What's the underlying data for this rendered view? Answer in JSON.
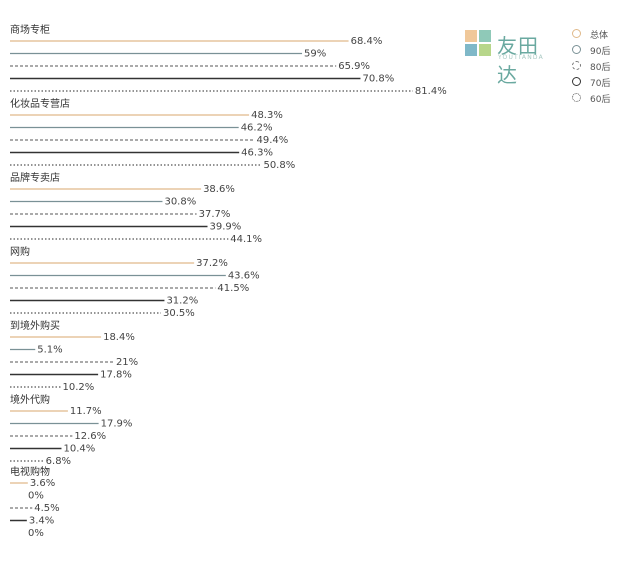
{
  "brand": {
    "name": "友田达",
    "sub": "YOUTIANDA"
  },
  "chart_data": {
    "type": "bar",
    "orientation": "horizontal",
    "grid": false,
    "legend_position": "top-right",
    "categories": [
      "商场专柜",
      "化妆品专营店",
      "品牌专卖店",
      "网购",
      "到境外购买",
      "境外代购",
      "电视购物"
    ],
    "series": [
      {
        "name": "总体",
        "color": "#e0b98a",
        "dash": "solid",
        "values": [
          68.4,
          48.3,
          38.6,
          37.2,
          18.4,
          11.7,
          3.6
        ]
      },
      {
        "name": "90后",
        "color": "#7a9196",
        "dash": "solid",
        "values": [
          59,
          46.2,
          30.8,
          43.6,
          5.1,
          17.9,
          0
        ]
      },
      {
        "name": "80后",
        "color": "#777777",
        "dash": "dashed",
        "values": [
          65.9,
          49.4,
          37.7,
          41.5,
          21,
          12.6,
          4.5
        ]
      },
      {
        "name": "70后",
        "color": "#333333",
        "dash": "solid",
        "values": [
          70.8,
          46.3,
          39.9,
          31.2,
          17.8,
          10.4,
          3.4
        ]
      },
      {
        "name": "60后",
        "color": "#555555",
        "dash": "dotted",
        "values": [
          81.4,
          50.8,
          44.1,
          30.5,
          10.2,
          6.8,
          0
        ]
      }
    ],
    "value_labels": [
      [
        "68.4%",
        "59%",
        "65.9%",
        "70.8%",
        "81.4%"
      ],
      [
        "48.3%",
        "46.2%",
        "49.4%",
        "46.3%",
        "50.8%"
      ],
      [
        "38.6%",
        "30.8%",
        "37.7%",
        "39.9%",
        "44.1%"
      ],
      [
        "37.2%",
        "43.6%",
        "41.5%",
        "31.2%",
        "30.5%"
      ],
      [
        "18.4%",
        "5.1%",
        "21%",
        "17.8%",
        "10.2%"
      ],
      [
        "11.7%",
        "17.9%",
        "12.6%",
        "10.4%",
        "6.8%"
      ],
      [
        "3.6%",
        "0%",
        "4.5%",
        "3.4%",
        "0%"
      ]
    ],
    "xlim": [
      0,
      100
    ],
    "title": "",
    "xlabel": "",
    "ylabel": ""
  }
}
